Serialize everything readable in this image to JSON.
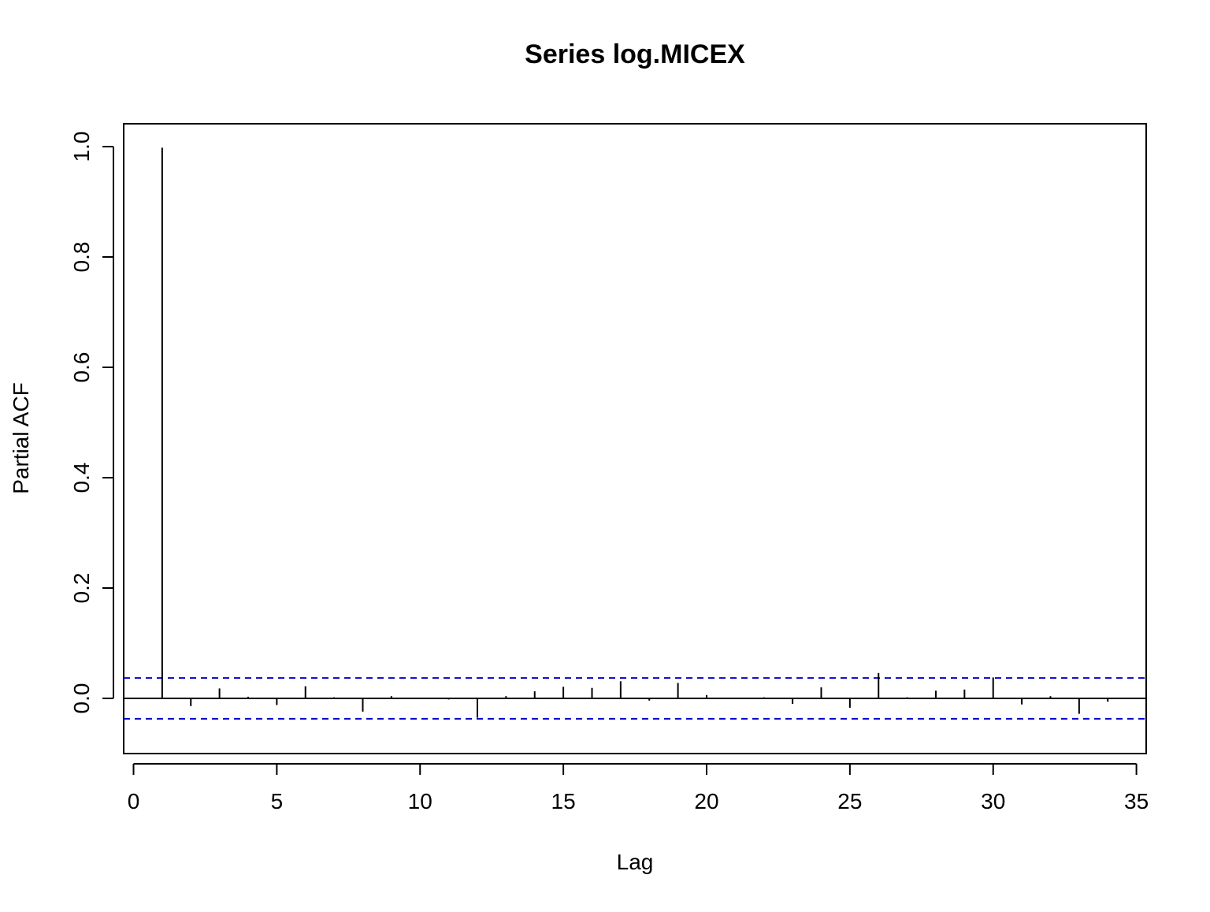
{
  "chart_data": {
    "type": "bar",
    "title": "Series  log.MICEX",
    "xlabel": "Lag",
    "ylabel": "Partial ACF",
    "xlim": [
      0,
      35
    ],
    "ylim": [
      -0.1,
      1.0
    ],
    "x_ticks": [
      0,
      5,
      10,
      15,
      20,
      25,
      30,
      35
    ],
    "x_tick_labels": [
      "0",
      "5",
      "10",
      "15",
      "20",
      "25",
      "30",
      "35"
    ],
    "y_ticks": [
      0.0,
      0.2,
      0.4,
      0.6,
      0.8,
      1.0
    ],
    "y_tick_labels": [
      "0.0",
      "0.2",
      "0.4",
      "0.6",
      "0.8",
      "1.0"
    ],
    "grid": false,
    "series": [
      {
        "lags": [
          1,
          2,
          3,
          4,
          5,
          6,
          7,
          8,
          9,
          10,
          11,
          12,
          13,
          14,
          15,
          16,
          17,
          18,
          19,
          20,
          21,
          22,
          23,
          24,
          25,
          26,
          27,
          28,
          29,
          30,
          31,
          32,
          33,
          34
        ],
        "values": [
          0.998,
          -0.014,
          0.018,
          0.003,
          -0.012,
          0.022,
          0.002,
          -0.024,
          0.004,
          0.001,
          -0.002,
          -0.035,
          0.004,
          0.013,
          0.021,
          0.019,
          0.031,
          -0.004,
          0.028,
          0.006,
          0.001,
          0.002,
          -0.01,
          0.02,
          -0.017,
          0.046,
          0.002,
          0.014,
          0.016,
          0.038,
          -0.011,
          0.004,
          -0.028,
          -0.006
        ],
        "color": "#000000"
      }
    ],
    "confidence_bounds": {
      "upper": 0.037,
      "lower": -0.037,
      "color": "#0000cc",
      "style": "dashed"
    }
  }
}
